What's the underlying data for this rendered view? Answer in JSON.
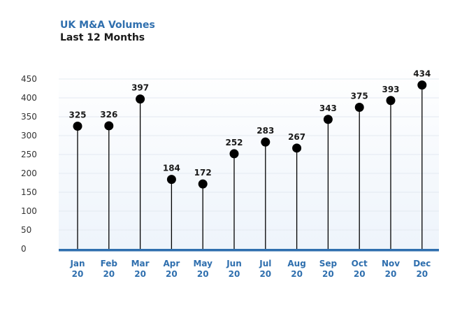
{
  "chart_data": {
    "type": "lollipop",
    "title": "UK M&A Volumes",
    "subtitle": "Last 12 Months",
    "categories": [
      {
        "month": "Jan",
        "year": "20"
      },
      {
        "month": "Feb",
        "year": "20"
      },
      {
        "month": "Mar",
        "year": "20"
      },
      {
        "month": "Apr",
        "year": "20"
      },
      {
        "month": "May",
        "year": "20"
      },
      {
        "month": "Jun",
        "year": "20"
      },
      {
        "month": "Jul",
        "year": "20"
      },
      {
        "month": "Aug",
        "year": "20"
      },
      {
        "month": "Sep",
        "year": "20"
      },
      {
        "month": "Oct",
        "year": "20"
      },
      {
        "month": "Nov",
        "year": "20"
      },
      {
        "month": "Dec",
        "year": "20"
      }
    ],
    "values": [
      325,
      326,
      397,
      184,
      172,
      252,
      283,
      267,
      343,
      375,
      393,
      434
    ],
    "data_labels": [
      "325",
      "326",
      "397",
      "184",
      "172",
      "252",
      "283",
      "267",
      "343",
      "375",
      "393",
      "434"
    ],
    "yticks": [
      0,
      50,
      100,
      150,
      200,
      250,
      300,
      350,
      400,
      450
    ],
    "ytick_labels": [
      "0",
      "50",
      "100",
      "150",
      "200",
      "250",
      "300",
      "350",
      "400",
      "450"
    ],
    "ylim": [
      0,
      450
    ],
    "xlabel": "",
    "ylabel": "",
    "grid": true,
    "colors": {
      "title": "#2f6fae",
      "subtitle": "#1a1a1a",
      "axis": "#2f6fae",
      "marker": "#000000",
      "stem": "#000000",
      "grid": "#e3e9f1",
      "category_label": "#2f6fae",
      "plot_background_top": "#ffffff",
      "plot_background_bottom": "#eef4fb"
    }
  }
}
